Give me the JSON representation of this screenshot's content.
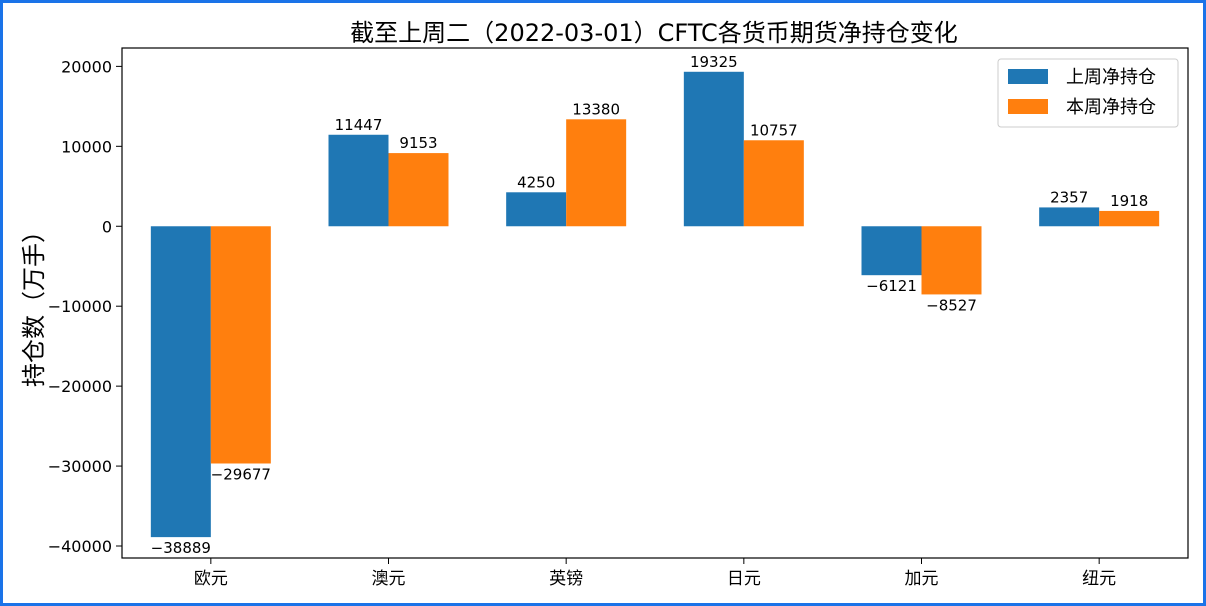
{
  "chart_data": {
    "type": "bar",
    "title": "截至上周二（2022-03-01）CFTC各货币期货净持仓变化",
    "xlabel": "",
    "ylabel": "持仓数（万手）",
    "categories": [
      "欧元",
      "澳元",
      "英镑",
      "日元",
      "加元",
      "纽元"
    ],
    "series": [
      {
        "name": "上周净持仓",
        "values": [
          -38889,
          11447,
          4250,
          19325,
          -6121,
          2357
        ],
        "color": "#1f77b4"
      },
      {
        "name": "本周净持仓",
        "values": [
          -29677,
          9153,
          13380,
          10757,
          -8527,
          1918
        ],
        "color": "#ff7f0e"
      }
    ],
    "ylim": [
      -41500,
      22300
    ],
    "yticks": [
      20000,
      10000,
      0,
      -10000,
      -20000,
      -30000,
      -40000
    ],
    "ytick_labels": [
      "20000",
      "10000",
      "0",
      "−10000",
      "−20000",
      "−30000",
      "−40000"
    ],
    "data_labels": [
      [
        "−38889",
        "11447",
        "4250",
        "19325",
        "−6121",
        "2357"
      ],
      [
        "−29677",
        "9153",
        "13380",
        "10757",
        "−8527",
        "1918"
      ]
    ],
    "legend_position": "top-right",
    "grid": false
  }
}
